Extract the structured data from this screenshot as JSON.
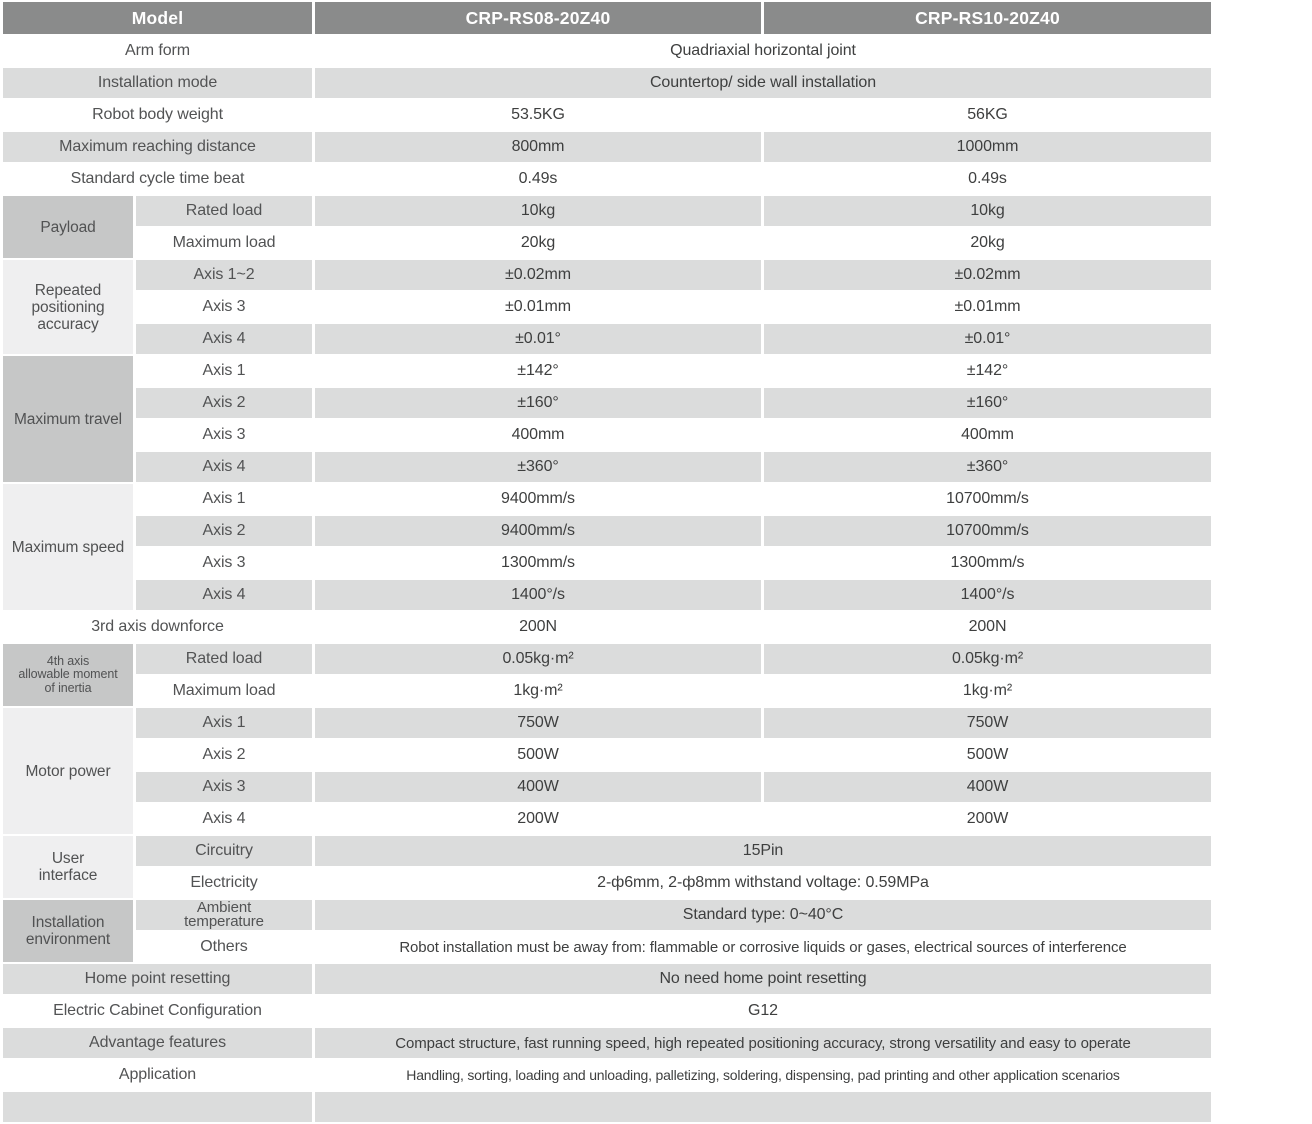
{
  "colors": {
    "header_bg": "#8a8b8b",
    "header_text": "#ffffff",
    "row_shade": "#dbdcdc",
    "group_dark": "#c6c7c7",
    "group_light": "#efeff0",
    "label_text": "#525354",
    "value_text": "#3e3f3f"
  },
  "header": {
    "model_label": "Model",
    "model_1": "CRP-RS08-20Z40",
    "model_2": "CRP-RS10-20Z40"
  },
  "rows": [
    {
      "label": "Arm form",
      "span2": true,
      "shaded": false,
      "merged": "Quadriaxial horizontal joint"
    },
    {
      "label": "Installation mode",
      "span2": true,
      "shaded": true,
      "merged": "Countertop/ side wall installation"
    },
    {
      "label": "Robot body weight",
      "span2": true,
      "shaded": false,
      "values": [
        "53.5KG",
        "56KG"
      ]
    },
    {
      "label": "Maximum reaching distance",
      "span2": true,
      "shaded": true,
      "values": [
        "800mm",
        "1000mm"
      ]
    },
    {
      "label": "Standard cycle time beat",
      "span2": true,
      "shaded": false,
      "values": [
        "0.49s",
        "0.49s"
      ]
    },
    {
      "group": {
        "text": "Payload",
        "span": 2,
        "shade": "dark"
      },
      "label": "Rated load",
      "shaded": true,
      "values": [
        "10kg",
        "10kg"
      ]
    },
    {
      "label": "Maximum load",
      "shaded": false,
      "values": [
        "20kg",
        "20kg"
      ]
    },
    {
      "group": {
        "text": "Repeated\npositioning\naccuracy",
        "span": 3,
        "shade": "light"
      },
      "label": "Axis 1~2",
      "shaded": true,
      "values": [
        "±0.02mm",
        "±0.02mm"
      ]
    },
    {
      "label": "Axis 3",
      "shaded": false,
      "values": [
        "±0.01mm",
        "±0.01mm"
      ]
    },
    {
      "label": "Axis 4",
      "shaded": true,
      "values": [
        "±0.01°",
        "±0.01°"
      ]
    },
    {
      "group": {
        "text": "Maximum travel",
        "span": 4,
        "shade": "dark"
      },
      "label": "Axis 1",
      "shaded": false,
      "values": [
        "±142°",
        "±142°"
      ]
    },
    {
      "label": "Axis 2",
      "shaded": true,
      "values": [
        "±160°",
        "±160°"
      ]
    },
    {
      "label": "Axis 3",
      "shaded": false,
      "values": [
        "400mm",
        "400mm"
      ]
    },
    {
      "label": "Axis 4",
      "shaded": true,
      "values": [
        "±360°",
        "±360°"
      ]
    },
    {
      "group": {
        "text": "Maximum speed",
        "span": 4,
        "shade": "light"
      },
      "label": "Axis 1",
      "shaded": false,
      "values": [
        "9400mm/s",
        "10700mm/s"
      ]
    },
    {
      "label": "Axis 2",
      "shaded": true,
      "values": [
        "9400mm/s",
        "10700mm/s"
      ]
    },
    {
      "label": "Axis 3",
      "shaded": false,
      "values": [
        "1300mm/s",
        "1300mm/s"
      ]
    },
    {
      "label": "Axis 4",
      "shaded": true,
      "values": [
        "1400°/s",
        "1400°/s"
      ]
    },
    {
      "label": "3rd axis downforce",
      "span2": true,
      "shaded": false,
      "values": [
        "200N",
        "200N"
      ]
    },
    {
      "group": {
        "text": "4th axis\nallowable moment\nof inertia",
        "span": 2,
        "shade": "dark",
        "small": true
      },
      "label": "Rated load",
      "shaded": true,
      "values": [
        "0.05kg·m²",
        "0.05kg·m²"
      ]
    },
    {
      "label": "Maximum load",
      "shaded": false,
      "values": [
        "1kg·m²",
        "1kg·m²"
      ]
    },
    {
      "group": {
        "text": "Motor power",
        "span": 4,
        "shade": "light"
      },
      "label": "Axis 1",
      "shaded": true,
      "values": [
        "750W",
        "750W"
      ]
    },
    {
      "label": "Axis 2",
      "shaded": false,
      "values": [
        "500W",
        "500W"
      ]
    },
    {
      "label": "Axis 3",
      "shaded": true,
      "values": [
        "400W",
        "400W"
      ]
    },
    {
      "label": "Axis 4",
      "shaded": false,
      "values": [
        "200W",
        "200W"
      ]
    },
    {
      "group": {
        "text": "User\ninterface",
        "span": 2,
        "shade": "light"
      },
      "label": "Circuitry",
      "shaded": true,
      "merged": "15Pin"
    },
    {
      "label": "Electricity",
      "shaded": false,
      "merged": "2-ф6mm, 2-ф8mm withstand voltage: 0.59MPa"
    },
    {
      "group": {
        "text": "Installation\nenvironment",
        "span": 2,
        "shade": "dark"
      },
      "label": "Ambient\ntemperature",
      "shaded": true,
      "merged": "Standard type: 0~40°C"
    },
    {
      "label": "Others",
      "shaded": false,
      "merged": "Robot installation must be away from: flammable or corrosive liquids or gases, electrical sources of interference"
    },
    {
      "label": "Home point resetting",
      "span2": true,
      "shaded": true,
      "merged": "No need home point resetting"
    },
    {
      "label": "Electric Cabinet Configuration",
      "span2": true,
      "shaded": false,
      "merged": "G12"
    },
    {
      "label": "Advantage features",
      "span2": true,
      "shaded": true,
      "merged": "Compact structure, fast running speed, high repeated positioning accuracy, strong versatility and easy to operate"
    },
    {
      "label": "Application",
      "span2": true,
      "shaded": false,
      "merged": "Handling, sorting, loading and unloading, palletizing, soldering, dispensing, pad printing and other application scenarios"
    },
    {
      "label": "",
      "span2": true,
      "shaded": true,
      "merged": ""
    }
  ]
}
